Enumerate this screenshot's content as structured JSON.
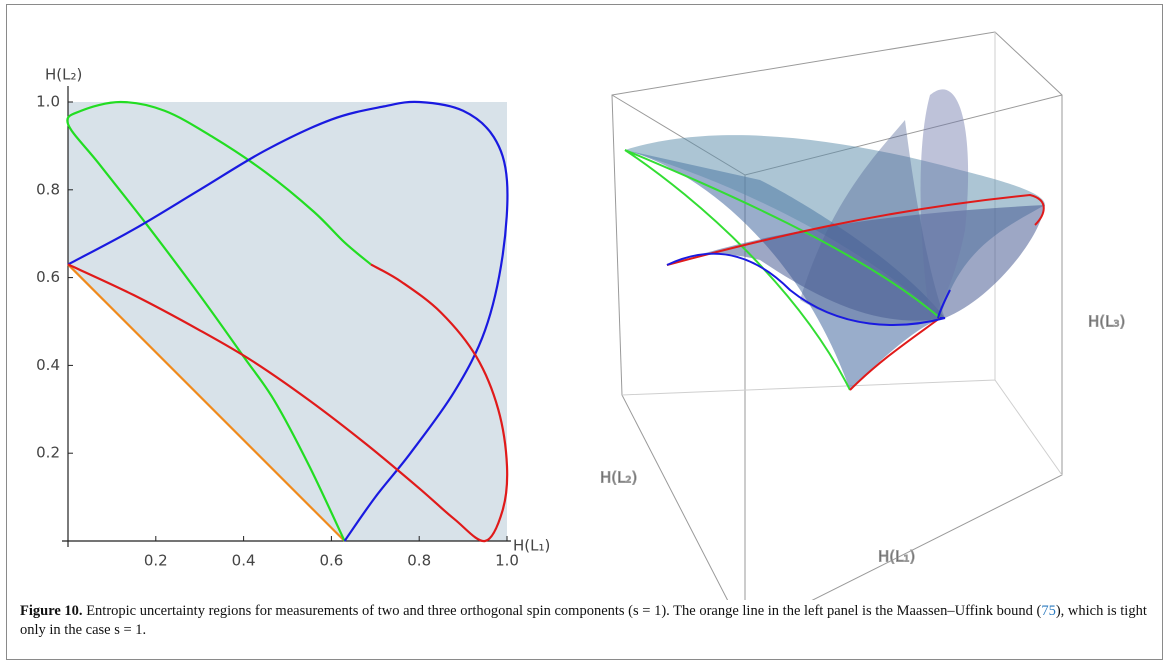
{
  "chart_data": {
    "type": "line",
    "x_label": "H(L₁)",
    "y_label": "H(L₂)",
    "xlim": [
      0,
      1
    ],
    "ylim": [
      0,
      1
    ],
    "xticks": [
      0.2,
      0.4,
      0.6,
      0.8,
      {
        "value": 1,
        "label": "1.0"
      }
    ],
    "yticks": [
      0.2,
      0.4,
      0.6,
      0.8,
      {
        "value": 1,
        "label": "1.0"
      }
    ],
    "series": [
      {
        "color": "#f08a1c",
        "x": [
          0,
          0.63
        ],
        "y": [
          0.63,
          0
        ]
      },
      {
        "color": "#22dd22",
        "x": [
          0.63,
          0.55,
          0.47,
          0.4,
          0.3,
          0.18,
          0.07,
          0,
          0.03,
          0.12,
          0.22,
          0.33,
          0.45,
          0.56,
          0.63,
          0.69
        ],
        "y": [
          0,
          0.17,
          0.32,
          0.42,
          0.56,
          0.72,
          0.86,
          0.95,
          0.98,
          1.0,
          0.98,
          0.92,
          0.84,
          0.75,
          0.68,
          0.63
        ]
      },
      {
        "color": "#1a1ae0",
        "x": [
          0,
          0.15,
          0.3,
          0.45,
          0.6,
          0.72,
          0.8,
          0.9,
          0.97,
          1.0,
          0.99,
          0.95,
          0.88,
          0.78,
          0.7,
          0.63
        ],
        "y": [
          0.63,
          0.71,
          0.8,
          0.89,
          0.96,
          0.99,
          1.0,
          0.98,
          0.92,
          0.82,
          0.65,
          0.48,
          0.34,
          0.2,
          0.1,
          0
        ]
      },
      {
        "color": "#e01a1a",
        "x": [
          0,
          0.15,
          0.3,
          0.42,
          0.55,
          0.68,
          0.8,
          0.88,
          0.95,
          0.99,
          1.0,
          0.98,
          0.93,
          0.85,
          0.76,
          0.69
        ],
        "y": [
          0.63,
          0.56,
          0.48,
          0.41,
          0.32,
          0.22,
          0.12,
          0.05,
          0,
          0.07,
          0.17,
          0.3,
          0.42,
          0.52,
          0.59,
          0.63
        ]
      }
    ]
  },
  "panel_3d": {
    "x_label": "H(L₁)",
    "y_label": "H(L₂)",
    "z_label": "H(L₃)"
  },
  "caption": {
    "label": "Figure 10.",
    "text_1": "Entropic uncertainty regions for measurements of two and three orthogonal spin components (s = 1). The orange line in the left panel is the Maassen–Uffink bound (",
    "ref": "75",
    "text_2": "), which is tight only in the case s = 1."
  }
}
